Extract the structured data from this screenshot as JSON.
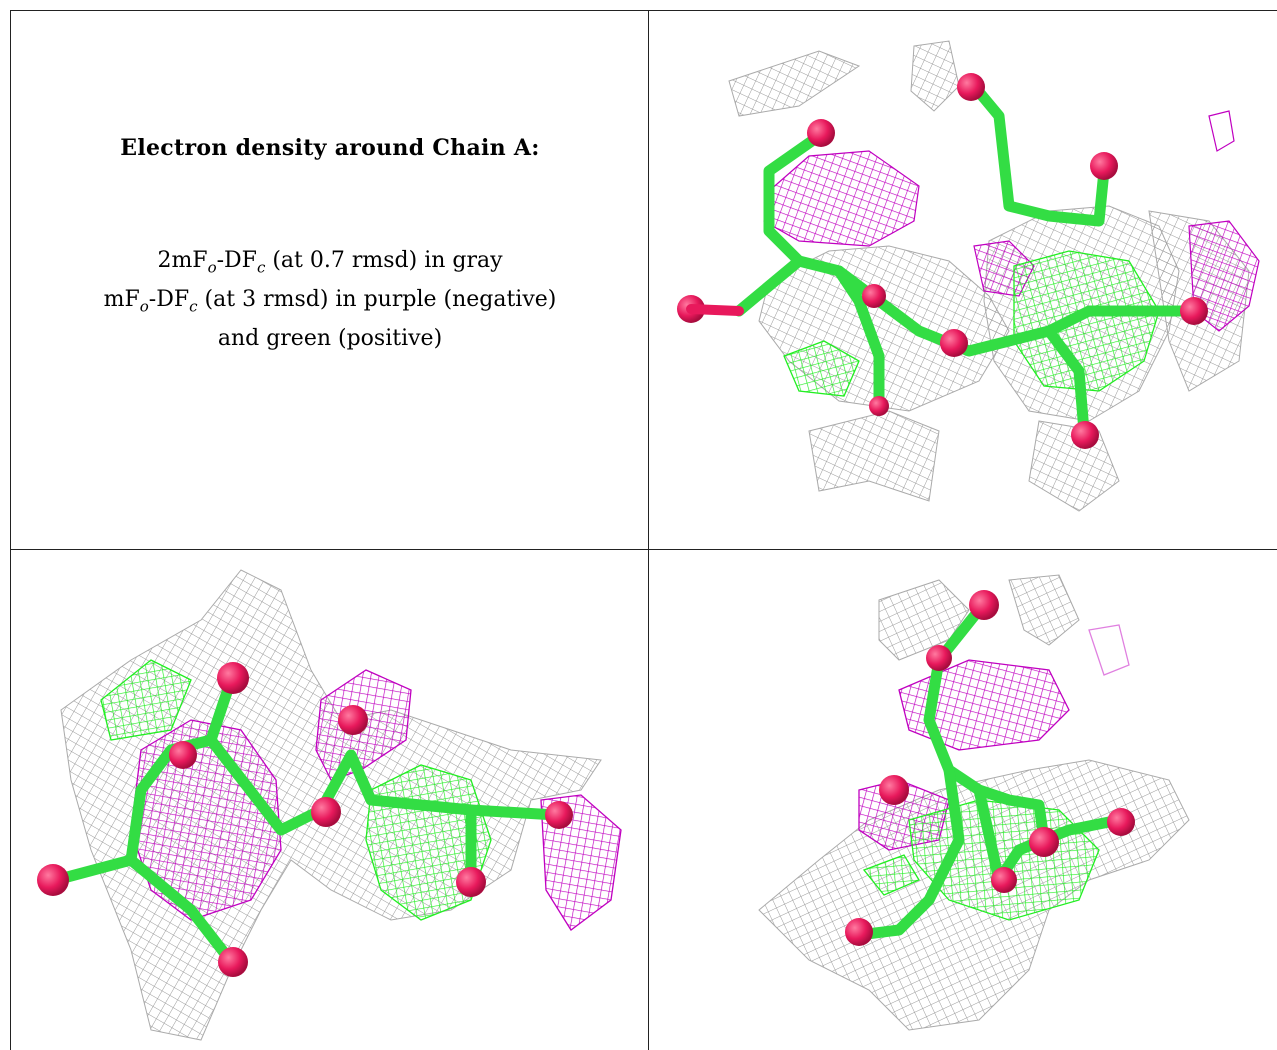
{
  "caption": {
    "title": "Electron density around Chain A:",
    "line1": {
      "prefix": "2mF",
      "sub1": "o",
      "mid": "-DF",
      "sub2": "c",
      "suffix": " (at 0.7 rmsd) in gray"
    },
    "line2": {
      "prefix": "mF",
      "sub1": "o",
      "mid": "-DF",
      "sub2": "c",
      "suffix": " (at 3 rmsd) in purple (negative)"
    },
    "line3": "and green (positive)"
  },
  "colors": {
    "gray_mesh": "#9a9a9a",
    "purple_mesh": "#c000c0",
    "green_mesh": "#22ee22",
    "stick": "#33dd44",
    "oxygen": "#e8195c",
    "border": "#222222"
  },
  "panels": [
    {
      "name": "top-right-view"
    },
    {
      "name": "bottom-left-view"
    },
    {
      "name": "bottom-right-view"
    }
  ]
}
